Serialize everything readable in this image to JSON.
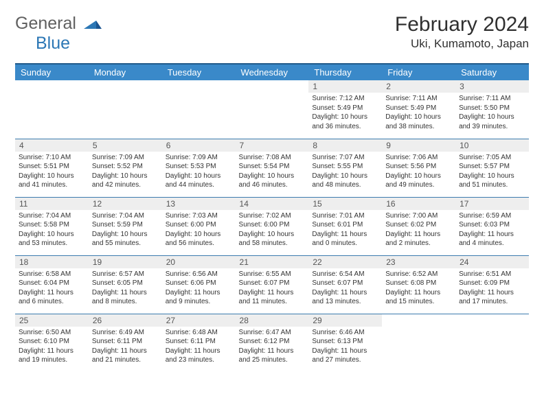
{
  "logo": {
    "general": "General",
    "blue": "Blue"
  },
  "title": "February 2024",
  "location": "Uki, Kumamoto, Japan",
  "colors": {
    "header_bg": "#3a89c9",
    "header_border": "#205a8a",
    "row_border": "#3a7aae",
    "daynum_bg": "#eeeeee",
    "text": "#333333",
    "logo_gray": "#606060",
    "logo_blue": "#2c77b5"
  },
  "weekdays": [
    "Sunday",
    "Monday",
    "Tuesday",
    "Wednesday",
    "Thursday",
    "Friday",
    "Saturday"
  ],
  "days": [
    null,
    null,
    null,
    null,
    {
      "n": "1",
      "sr": "7:12 AM",
      "ss": "5:49 PM",
      "dh": "10",
      "dm": "36"
    },
    {
      "n": "2",
      "sr": "7:11 AM",
      "ss": "5:49 PM",
      "dh": "10",
      "dm": "38"
    },
    {
      "n": "3",
      "sr": "7:11 AM",
      "ss": "5:50 PM",
      "dh": "10",
      "dm": "39"
    },
    {
      "n": "4",
      "sr": "7:10 AM",
      "ss": "5:51 PM",
      "dh": "10",
      "dm": "41"
    },
    {
      "n": "5",
      "sr": "7:09 AM",
      "ss": "5:52 PM",
      "dh": "10",
      "dm": "42"
    },
    {
      "n": "6",
      "sr": "7:09 AM",
      "ss": "5:53 PM",
      "dh": "10",
      "dm": "44"
    },
    {
      "n": "7",
      "sr": "7:08 AM",
      "ss": "5:54 PM",
      "dh": "10",
      "dm": "46"
    },
    {
      "n": "8",
      "sr": "7:07 AM",
      "ss": "5:55 PM",
      "dh": "10",
      "dm": "48"
    },
    {
      "n": "9",
      "sr": "7:06 AM",
      "ss": "5:56 PM",
      "dh": "10",
      "dm": "49"
    },
    {
      "n": "10",
      "sr": "7:05 AM",
      "ss": "5:57 PM",
      "dh": "10",
      "dm": "51"
    },
    {
      "n": "11",
      "sr": "7:04 AM",
      "ss": "5:58 PM",
      "dh": "10",
      "dm": "53"
    },
    {
      "n": "12",
      "sr": "7:04 AM",
      "ss": "5:59 PM",
      "dh": "10",
      "dm": "55"
    },
    {
      "n": "13",
      "sr": "7:03 AM",
      "ss": "6:00 PM",
      "dh": "10",
      "dm": "56"
    },
    {
      "n": "14",
      "sr": "7:02 AM",
      "ss": "6:00 PM",
      "dh": "10",
      "dm": "58"
    },
    {
      "n": "15",
      "sr": "7:01 AM",
      "ss": "6:01 PM",
      "dh": "11",
      "dm": "0"
    },
    {
      "n": "16",
      "sr": "7:00 AM",
      "ss": "6:02 PM",
      "dh": "11",
      "dm": "2"
    },
    {
      "n": "17",
      "sr": "6:59 AM",
      "ss": "6:03 PM",
      "dh": "11",
      "dm": "4"
    },
    {
      "n": "18",
      "sr": "6:58 AM",
      "ss": "6:04 PM",
      "dh": "11",
      "dm": "6"
    },
    {
      "n": "19",
      "sr": "6:57 AM",
      "ss": "6:05 PM",
      "dh": "11",
      "dm": "8"
    },
    {
      "n": "20",
      "sr": "6:56 AM",
      "ss": "6:06 PM",
      "dh": "11",
      "dm": "9"
    },
    {
      "n": "21",
      "sr": "6:55 AM",
      "ss": "6:07 PM",
      "dh": "11",
      "dm": "11"
    },
    {
      "n": "22",
      "sr": "6:54 AM",
      "ss": "6:07 PM",
      "dh": "11",
      "dm": "13"
    },
    {
      "n": "23",
      "sr": "6:52 AM",
      "ss": "6:08 PM",
      "dh": "11",
      "dm": "15"
    },
    {
      "n": "24",
      "sr": "6:51 AM",
      "ss": "6:09 PM",
      "dh": "11",
      "dm": "17"
    },
    {
      "n": "25",
      "sr": "6:50 AM",
      "ss": "6:10 PM",
      "dh": "11",
      "dm": "19"
    },
    {
      "n": "26",
      "sr": "6:49 AM",
      "ss": "6:11 PM",
      "dh": "11",
      "dm": "21"
    },
    {
      "n": "27",
      "sr": "6:48 AM",
      "ss": "6:11 PM",
      "dh": "11",
      "dm": "23"
    },
    {
      "n": "28",
      "sr": "6:47 AM",
      "ss": "6:12 PM",
      "dh": "11",
      "dm": "25"
    },
    {
      "n": "29",
      "sr": "6:46 AM",
      "ss": "6:13 PM",
      "dh": "11",
      "dm": "27"
    },
    null,
    null
  ],
  "labels": {
    "sunrise": "Sunrise: ",
    "sunset": "Sunset: ",
    "daylight": "Daylight: ",
    "hours": " hours",
    "and": "and ",
    "minutes": " minutes."
  }
}
